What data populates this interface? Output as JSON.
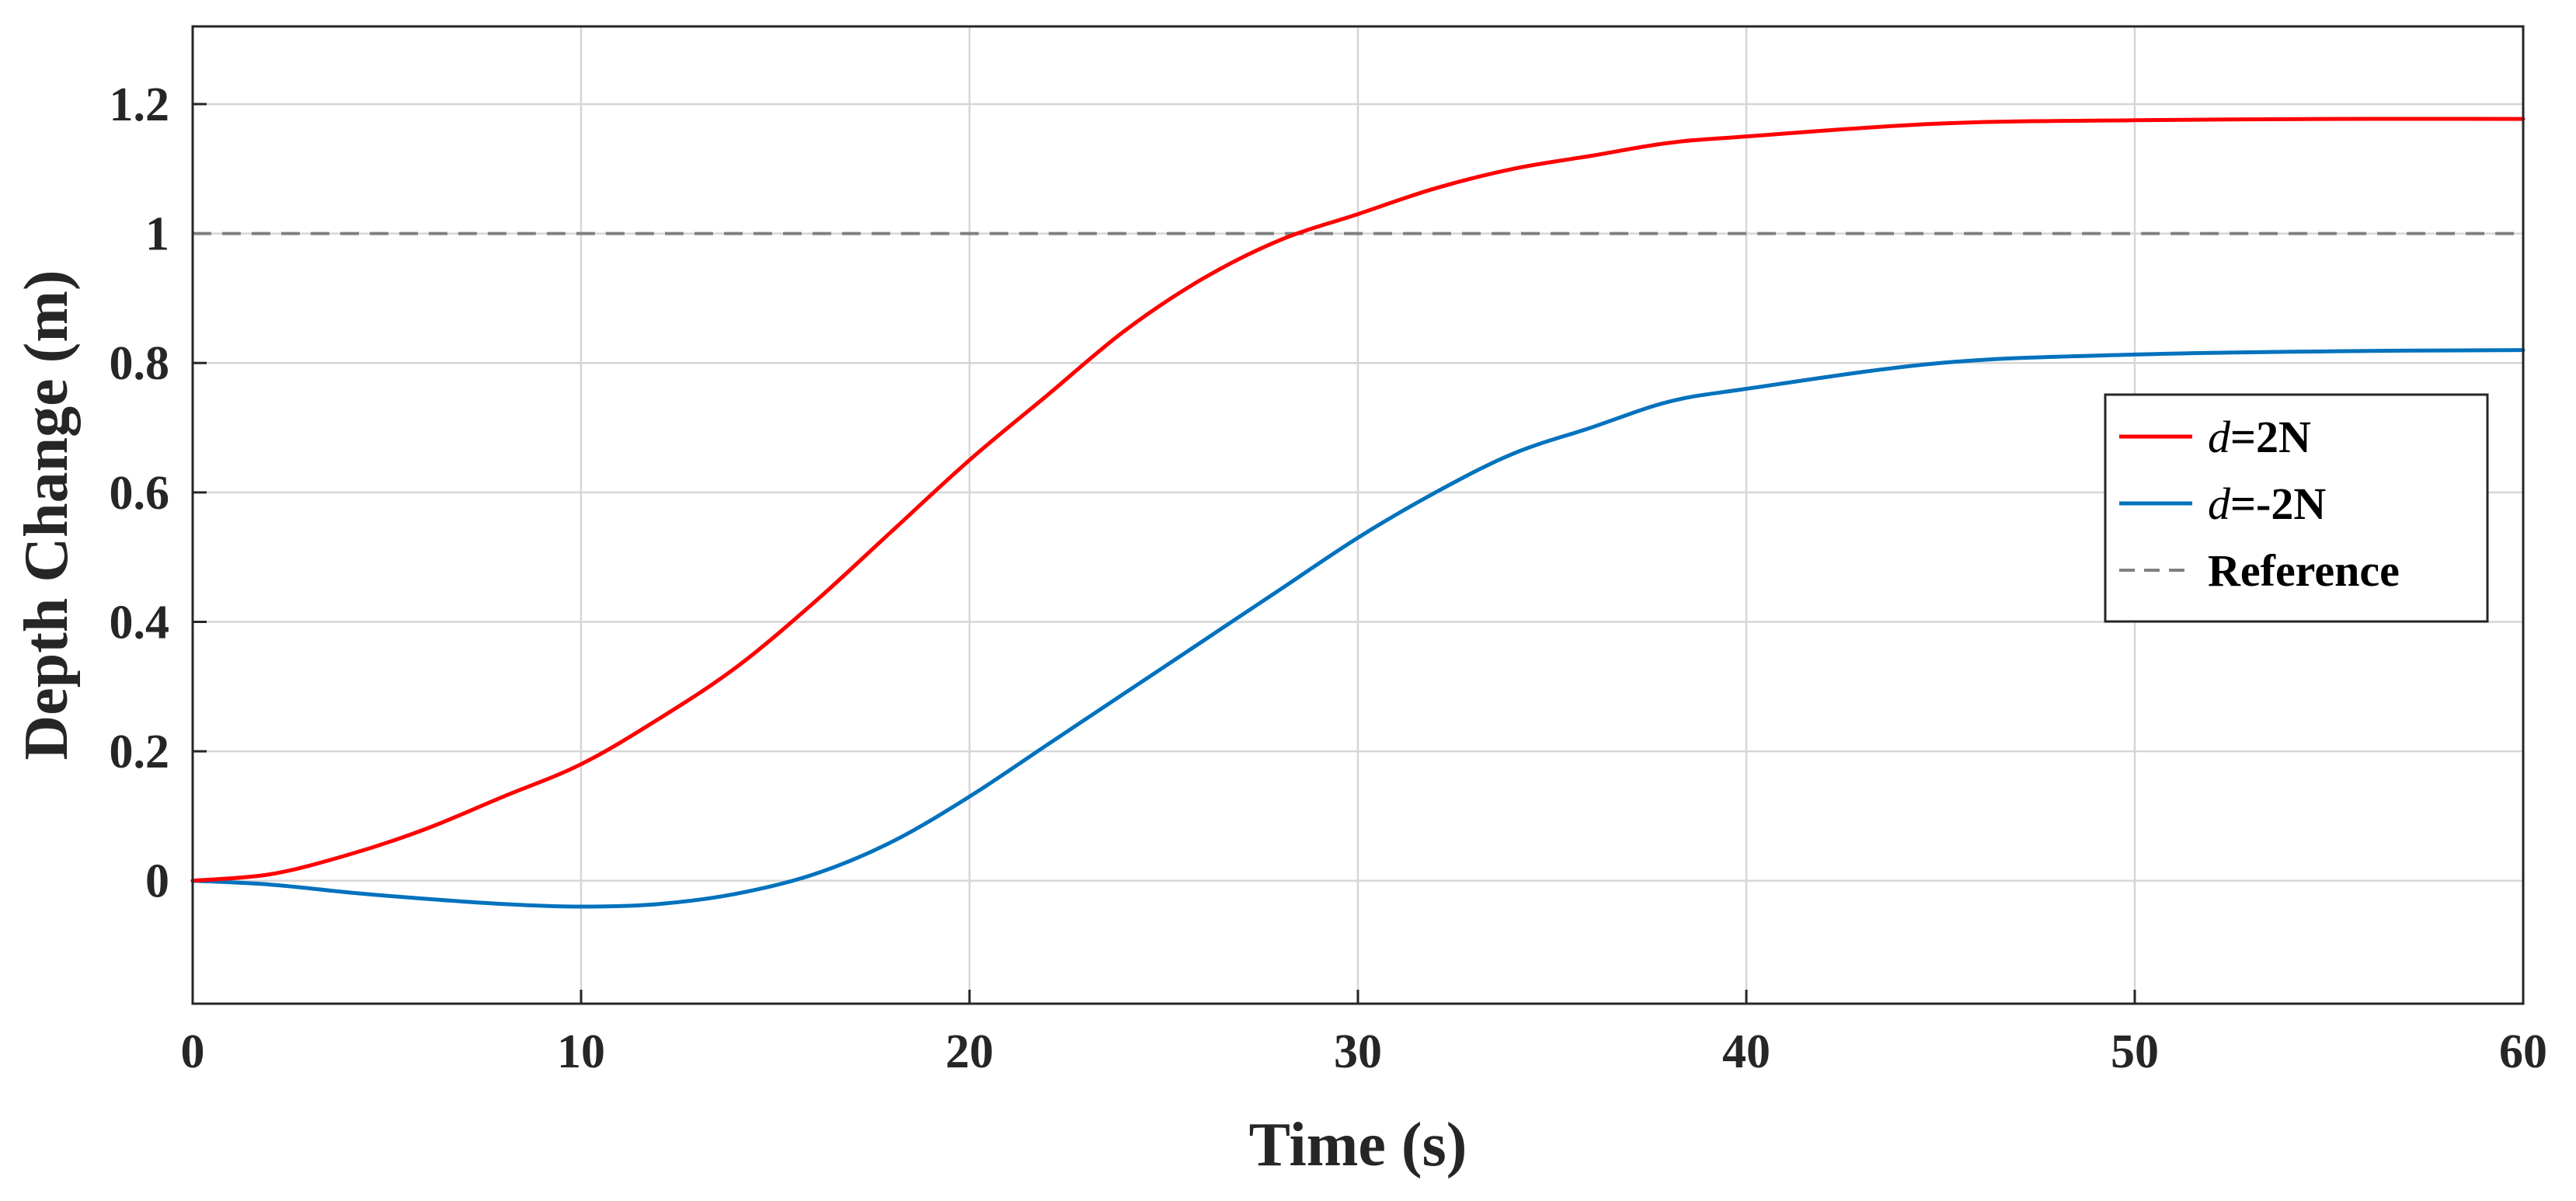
{
  "chart_data": {
    "type": "line",
    "title": "",
    "xlabel": "Time (s)",
    "ylabel": "Depth Change (m)",
    "xlim": [
      0,
      60
    ],
    "ylim": [
      -0.19,
      1.32
    ],
    "xticks": [
      0,
      10,
      20,
      30,
      40,
      50,
      60
    ],
    "yticks": [
      0,
      0.2,
      0.4,
      0.6,
      0.8,
      1,
      1.2
    ],
    "xtick_labels": [
      "0",
      "10",
      "20",
      "30",
      "40",
      "50",
      "60"
    ],
    "ytick_labels": [
      "0",
      "0.2",
      "0.4",
      "0.6",
      "0.8",
      "1",
      "1.2"
    ],
    "grid": true,
    "legend_position": "right",
    "series": [
      {
        "name": "d=2N",
        "legend_var": "d",
        "legend_rest": "=2N",
        "color": "#ff0000",
        "style": "solid",
        "x": [
          0,
          2,
          4,
          6,
          8,
          10,
          12,
          14,
          16,
          18,
          20,
          22,
          24,
          26,
          28,
          30,
          32,
          34,
          36,
          38,
          40,
          45,
          50,
          55,
          60
        ],
        "y": [
          0,
          0.01,
          0.04,
          0.08,
          0.13,
          0.18,
          0.25,
          0.33,
          0.43,
          0.54,
          0.65,
          0.75,
          0.85,
          0.93,
          0.99,
          1.03,
          1.07,
          1.1,
          1.12,
          1.14,
          1.15,
          1.17,
          1.175,
          1.177,
          1.177
        ]
      },
      {
        "name": "d=-2N",
        "legend_var": "d",
        "legend_rest": "=-2N",
        "color": "#0072bd",
        "style": "solid",
        "x": [
          0,
          2,
          4,
          6,
          8,
          10,
          12,
          14,
          16,
          18,
          20,
          22,
          24,
          26,
          28,
          30,
          32,
          34,
          36,
          38,
          40,
          45,
          50,
          55,
          60
        ],
        "y": [
          0,
          -0.006,
          -0.018,
          -0.028,
          -0.036,
          -0.04,
          -0.036,
          -0.02,
          0.01,
          0.06,
          0.13,
          0.21,
          0.29,
          0.37,
          0.45,
          0.53,
          0.6,
          0.66,
          0.7,
          0.74,
          0.76,
          0.8,
          0.813,
          0.818,
          0.82
        ]
      },
      {
        "name": "Reference",
        "legend_var": "",
        "legend_rest": "Reference",
        "color": "#808080",
        "style": "dashed",
        "x": [
          0,
          60
        ],
        "y": [
          1,
          1
        ]
      }
    ]
  }
}
